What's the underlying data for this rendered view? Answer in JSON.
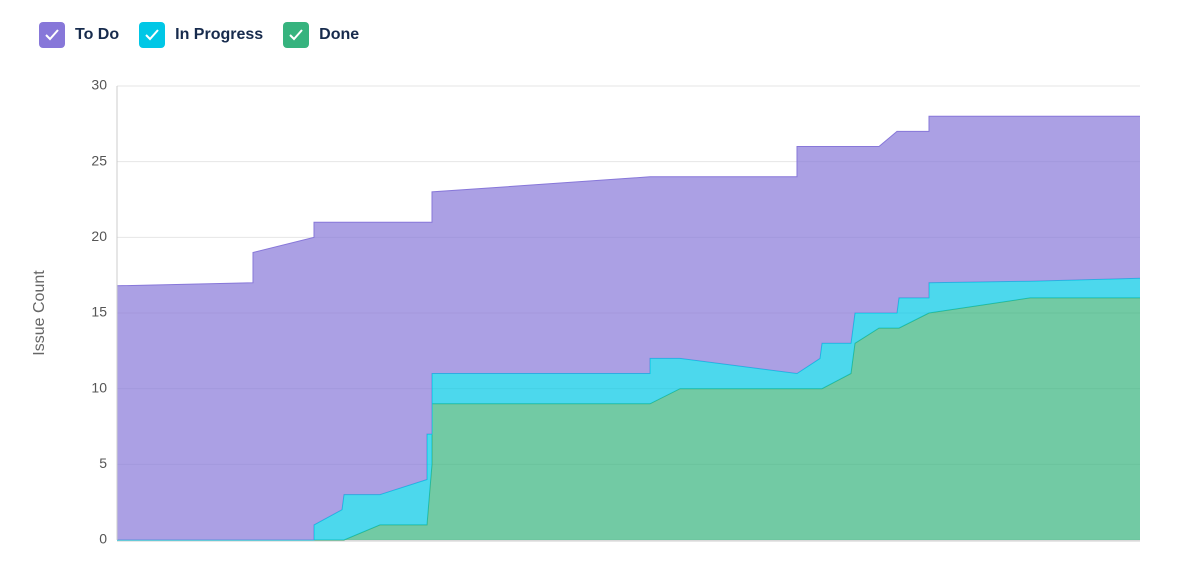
{
  "chart_data": {
    "type": "stacked-area",
    "y_label": "Issue Count",
    "x": [
      0,
      136,
      136,
      197,
      197,
      225,
      227,
      263,
      310,
      310,
      315,
      315,
      533,
      533,
      563,
      680,
      680,
      703,
      705,
      734,
      738,
      762,
      780,
      782,
      812,
      812,
      913,
      1023
    ],
    "xlim": [
      0,
      1023
    ],
    "ylim": [
      0,
      30
    ],
    "yticks": [
      0,
      5,
      10,
      15,
      20,
      25,
      30
    ],
    "grid": true,
    "series": [
      {
        "name": "Done",
        "color": "#36b37e",
        "values": [
          0,
          0,
          0,
          0,
          0,
          0,
          0,
          1,
          1,
          1,
          5,
          9,
          9,
          9,
          10,
          10,
          10,
          10,
          10,
          11,
          13,
          14,
          14,
          14,
          15,
          15,
          16,
          16
        ]
      },
      {
        "name": "In Progress",
        "color": "#00c7e6",
        "values": [
          0,
          0,
          0,
          0,
          1,
          2,
          3,
          2,
          3,
          6,
          2,
          2,
          2,
          3,
          2,
          1,
          1,
          2,
          3,
          2,
          2,
          1,
          1,
          2,
          1,
          2,
          1.1,
          1.3
        ]
      },
      {
        "name": "To Do",
        "color": "#8777d9",
        "values": [
          16.8,
          17,
          19,
          20,
          20,
          19,
          18,
          18,
          17,
          14,
          14,
          12,
          13,
          12,
          12,
          13,
          15,
          14,
          13,
          13,
          11,
          11,
          12,
          11,
          11,
          11,
          10.9,
          10.7
        ]
      }
    ]
  }
}
